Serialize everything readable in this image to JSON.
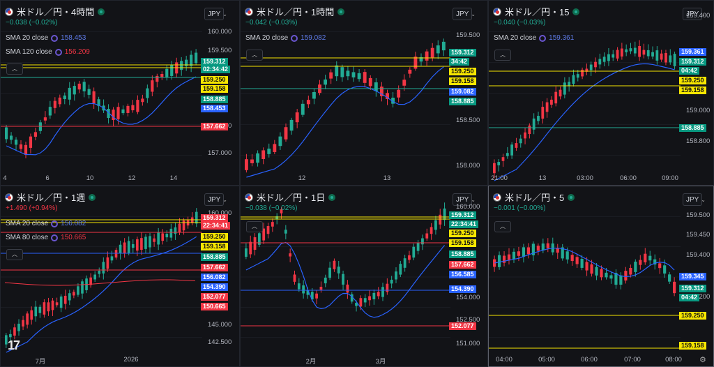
{
  "colors": {
    "up": "#22ab94",
    "down": "#f23645",
    "sma": "#2962ff",
    "yellow": "#f7e600",
    "green": "#0f8a6d",
    "red": "#cc2f3c",
    "blue": "#2962ff"
  },
  "currency": "JPY",
  "panes": [
    {
      "id": "p1",
      "title": "米ドル／円・4時間",
      "change": "−0.038 (−0.02%)",
      "dir": "down",
      "indicators": [
        {
          "label": "SMA 20 close",
          "value": "158.453",
          "color": "#5e7be8"
        },
        {
          "label": "SMA 120 close",
          "value": "156.209",
          "color": "#f23645"
        }
      ],
      "yticks": [
        "160.000",
        "159.500",
        "158.000",
        "157.000"
      ],
      "xticks": [
        "4",
        "6",
        "10",
        "12",
        "14"
      ],
      "labels": [
        {
          "text": "159.312",
          "kind": "green"
        },
        {
          "text": "02:34:42",
          "kind": "green"
        },
        {
          "text": "159.250",
          "kind": "yellow"
        },
        {
          "text": "159.158",
          "kind": "yellow"
        },
        {
          "text": "158.885",
          "kind": "green"
        },
        {
          "text": "158.453",
          "kind": "blue"
        },
        {
          "text": "157.662",
          "kind": "red"
        }
      ]
    },
    {
      "id": "p2",
      "title": "米ドル／円・1時間",
      "change": "−0.042 (−0.03%)",
      "dir": "down",
      "indicators": [
        {
          "label": "SMA 20 close",
          "value": "159.082",
          "color": "#5e7be8"
        }
      ],
      "yticks": [
        "159.500",
        "158.500",
        "158.000"
      ],
      "xticks": [
        "12",
        "13"
      ],
      "labels": [
        {
          "text": "159.312",
          "kind": "green"
        },
        {
          "text": "34:42",
          "kind": "green"
        },
        {
          "text": "159.250",
          "kind": "yellow"
        },
        {
          "text": "159.158",
          "kind": "yellow"
        },
        {
          "text": "159.082",
          "kind": "blue"
        },
        {
          "text": "158.885",
          "kind": "green"
        }
      ]
    },
    {
      "id": "p3",
      "title": "米ドル／円・15",
      "change": "−0.040 (−0.03%)",
      "dir": "down",
      "indicators": [
        {
          "label": "SMA 20 close",
          "value": "159.361",
          "color": "#5e7be8"
        }
      ],
      "yticks": [
        "159.400",
        "159.000",
        "158.800"
      ],
      "xticks": [
        "21:00",
        "13",
        "03:00",
        "06:00",
        "09:00"
      ],
      "labels": [
        {
          "text": "159.361",
          "kind": "blue"
        },
        {
          "text": "159.312",
          "kind": "green"
        },
        {
          "text": "04:42",
          "kind": "green"
        },
        {
          "text": "159.250",
          "kind": "yellow"
        },
        {
          "text": "159.158",
          "kind": "yellow"
        },
        {
          "text": "158.885",
          "kind": "green"
        }
      ]
    },
    {
      "id": "p4",
      "title": "米ドル／円・1週",
      "change": "+1.490 (+0.94%)",
      "dir": "up",
      "indicators": [
        {
          "label": "SMA 20 close",
          "value": "156.082",
          "color": "#5e7be8"
        },
        {
          "label": "SMA 80 close",
          "value": "150.665",
          "color": "#f23645"
        }
      ],
      "yticks": [
        "160.000",
        "145.000",
        "142.500"
      ],
      "xticks": [
        "7月",
        "2026"
      ],
      "labels": [
        {
          "text": "159.312",
          "kind": "red"
        },
        {
          "text": "22:34:41",
          "kind": "red"
        },
        {
          "text": "159.250",
          "kind": "yellow"
        },
        {
          "text": "159.158",
          "kind": "yellow"
        },
        {
          "text": "158.885",
          "kind": "green"
        },
        {
          "text": "157.662",
          "kind": "red"
        },
        {
          "text": "156.082",
          "kind": "blue"
        },
        {
          "text": "154.390",
          "kind": "blue"
        },
        {
          "text": "152.077",
          "kind": "red"
        },
        {
          "text": "150.665",
          "kind": "red"
        }
      ]
    },
    {
      "id": "p5",
      "title": "米ドル／円・1日",
      "change": "−0.038 (−0.02%)",
      "dir": "down",
      "indicators": [],
      "yticks": [
        "160.000",
        "154.000",
        "152.500",
        "151.000"
      ],
      "xticks": [
        "2月",
        "3月"
      ],
      "labels": [
        {
          "text": "159.312",
          "kind": "green"
        },
        {
          "text": "22:34:41",
          "kind": "green"
        },
        {
          "text": "159.250",
          "kind": "yellow"
        },
        {
          "text": "159.158",
          "kind": "yellow"
        },
        {
          "text": "158.885",
          "kind": "green"
        },
        {
          "text": "157.662",
          "kind": "red"
        },
        {
          "text": "156.585",
          "kind": "blue"
        },
        {
          "text": "154.390",
          "kind": "blue"
        },
        {
          "text": "152.077",
          "kind": "red"
        }
      ]
    },
    {
      "id": "p6",
      "title": "米ドル／円・5",
      "change": "−0.001 (−0.00%)",
      "dir": "down",
      "indicators": [],
      "yticks": [
        "159.500",
        "159.450",
        "159.400",
        "159.200"
      ],
      "xticks": [
        "04:00",
        "05:00",
        "06:00",
        "07:00",
        "08:00"
      ],
      "labels": [
        {
          "text": "159.345",
          "kind": "blue"
        },
        {
          "text": "159.312",
          "kind": "green"
        },
        {
          "text": "04:42",
          "kind": "green"
        },
        {
          "text": "159.250",
          "kind": "yellow"
        },
        {
          "text": "159.158",
          "kind": "yellow"
        }
      ]
    }
  ]
}
